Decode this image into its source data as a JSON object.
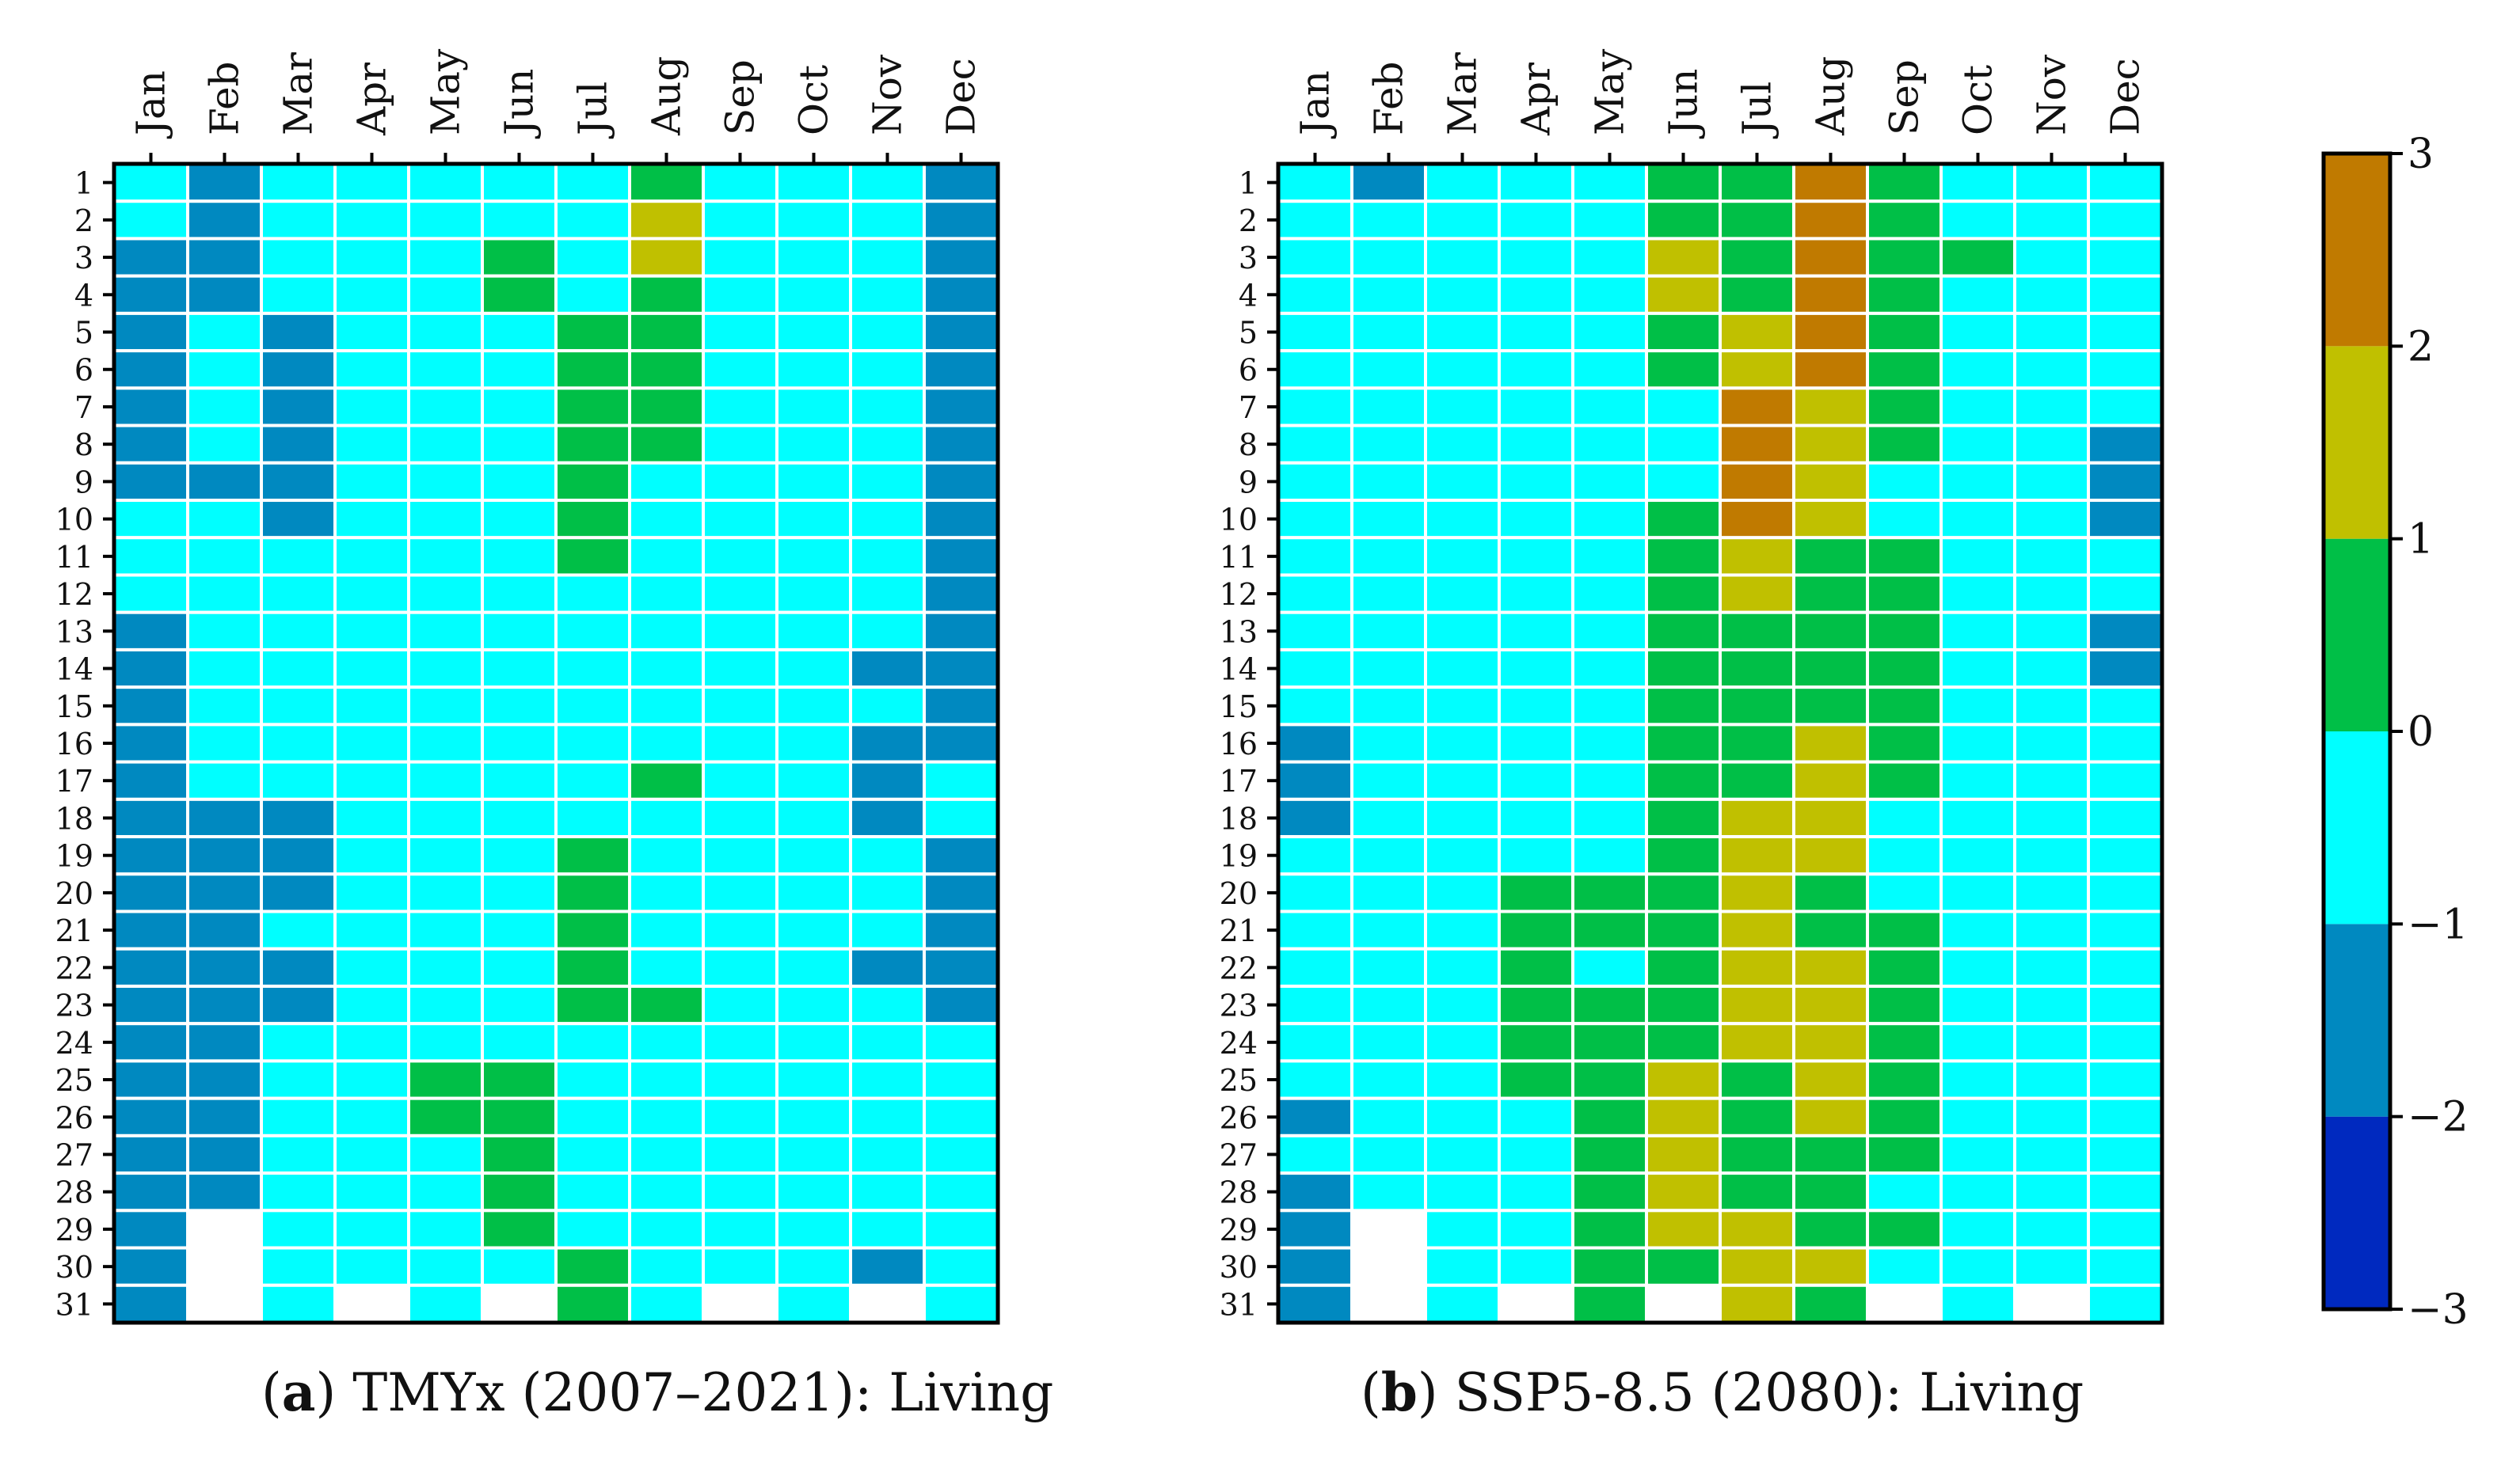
{
  "colors": {
    "background": "#ffffff",
    "grid_line": "#ffffff",
    "frame": "#000000",
    "levels": {
      "-3": "#0029bf",
      "-2": "#0089c0",
      "-1": "#00ffff",
      "0": "#00bf47",
      "1": "#c0c000",
      "2": "#c07a00"
    }
  },
  "chart_data": [
    {
      "type": "heatmap",
      "caption_label": "a",
      "caption_text": " TMYx (2007–2021): Living",
      "months": [
        "Jan",
        "Feb",
        "Mar",
        "Apr",
        "May",
        "Jun",
        "Jul",
        "Aug",
        "Sep",
        "Oct",
        "Nov",
        "Dec"
      ],
      "days": [
        "1",
        "2",
        "3",
        "4",
        "5",
        "6",
        "7",
        "8",
        "9",
        "10",
        "11",
        "12",
        "13",
        "14",
        "15",
        "16",
        "17",
        "18",
        "19",
        "20",
        "21",
        "22",
        "23",
        "24",
        "25",
        "26",
        "27",
        "28",
        "29",
        "30",
        "31"
      ],
      "value_note": "rows = days 1..31, columns = Jan..Dec, value = color level index (-3..2), null = no day",
      "values": [
        [
          -1,
          -2,
          -1,
          -1,
          -1,
          -1,
          -1,
          0,
          -1,
          -1,
          -1,
          -2
        ],
        [
          -1,
          -2,
          -1,
          -1,
          -1,
          -1,
          -1,
          1,
          -1,
          -1,
          -1,
          -2
        ],
        [
          -2,
          -2,
          -1,
          -1,
          -1,
          0,
          -1,
          1,
          -1,
          -1,
          -1,
          -2
        ],
        [
          -2,
          -2,
          -1,
          -1,
          -1,
          0,
          -1,
          0,
          -1,
          -1,
          -1,
          -2
        ],
        [
          -2,
          -1,
          -2,
          -1,
          -1,
          -1,
          0,
          0,
          -1,
          -1,
          -1,
          -2
        ],
        [
          -2,
          -1,
          -2,
          -1,
          -1,
          -1,
          0,
          0,
          -1,
          -1,
          -1,
          -2
        ],
        [
          -2,
          -1,
          -2,
          -1,
          -1,
          -1,
          0,
          0,
          -1,
          -1,
          -1,
          -2
        ],
        [
          -2,
          -1,
          -2,
          -1,
          -1,
          -1,
          0,
          0,
          -1,
          -1,
          -1,
          -2
        ],
        [
          -2,
          -2,
          -2,
          -1,
          -1,
          -1,
          0,
          -1,
          -1,
          -1,
          -1,
          -2
        ],
        [
          -1,
          -1,
          -2,
          -1,
          -1,
          -1,
          0,
          -1,
          -1,
          -1,
          -1,
          -2
        ],
        [
          -1,
          -1,
          -1,
          -1,
          -1,
          -1,
          0,
          -1,
          -1,
          -1,
          -1,
          -2
        ],
        [
          -1,
          -1,
          -1,
          -1,
          -1,
          -1,
          -1,
          -1,
          -1,
          -1,
          -1,
          -2
        ],
        [
          -2,
          -1,
          -1,
          -1,
          -1,
          -1,
          -1,
          -1,
          -1,
          -1,
          -1,
          -2
        ],
        [
          -2,
          -1,
          -1,
          -1,
          -1,
          -1,
          -1,
          -1,
          -1,
          -1,
          -2,
          -2
        ],
        [
          -2,
          -1,
          -1,
          -1,
          -1,
          -1,
          -1,
          -1,
          -1,
          -1,
          -1,
          -2
        ],
        [
          -2,
          -1,
          -1,
          -1,
          -1,
          -1,
          -1,
          -1,
          -1,
          -1,
          -2,
          -2
        ],
        [
          -2,
          -1,
          -1,
          -1,
          -1,
          -1,
          -1,
          0,
          -1,
          -1,
          -2,
          -1
        ],
        [
          -2,
          -2,
          -2,
          -1,
          -1,
          -1,
          -1,
          -1,
          -1,
          -1,
          -2,
          -1
        ],
        [
          -2,
          -2,
          -2,
          -1,
          -1,
          -1,
          0,
          -1,
          -1,
          -1,
          -1,
          -2
        ],
        [
          -2,
          -2,
          -2,
          -1,
          -1,
          -1,
          0,
          -1,
          -1,
          -1,
          -1,
          -2
        ],
        [
          -2,
          -2,
          -1,
          -1,
          -1,
          -1,
          0,
          -1,
          -1,
          -1,
          -1,
          -2
        ],
        [
          -2,
          -2,
          -2,
          -1,
          -1,
          -1,
          0,
          -1,
          -1,
          -1,
          -2,
          -2
        ],
        [
          -2,
          -2,
          -2,
          -1,
          -1,
          -1,
          0,
          0,
          -1,
          -1,
          -1,
          -2
        ],
        [
          -2,
          -2,
          -1,
          -1,
          -1,
          -1,
          -1,
          -1,
          -1,
          -1,
          -1,
          -1
        ],
        [
          -2,
          -2,
          -1,
          -1,
          0,
          0,
          -1,
          -1,
          -1,
          -1,
          -1,
          -1
        ],
        [
          -2,
          -2,
          -1,
          -1,
          0,
          0,
          -1,
          -1,
          -1,
          -1,
          -1,
          -1
        ],
        [
          -2,
          -2,
          -1,
          -1,
          -1,
          0,
          -1,
          -1,
          -1,
          -1,
          -1,
          -1
        ],
        [
          -2,
          -2,
          -1,
          -1,
          -1,
          0,
          -1,
          -1,
          -1,
          -1,
          -1,
          -1
        ],
        [
          -2,
          null,
          -1,
          -1,
          -1,
          0,
          -1,
          -1,
          -1,
          -1,
          -1,
          -1
        ],
        [
          -2,
          null,
          -1,
          -1,
          -1,
          -1,
          0,
          -1,
          -1,
          -1,
          -2,
          -1
        ],
        [
          -2,
          null,
          -1,
          null,
          -1,
          null,
          0,
          -1,
          null,
          -1,
          null,
          -1
        ]
      ]
    },
    {
      "type": "heatmap",
      "caption_label": "b",
      "caption_text": " SSP5-8.5 (2080): Living",
      "months": [
        "Jan",
        "Feb",
        "Mar",
        "Apr",
        "May",
        "Jun",
        "Jul",
        "Aug",
        "Sep",
        "Oct",
        "Nov",
        "Dec"
      ],
      "days": [
        "1",
        "2",
        "3",
        "4",
        "5",
        "6",
        "7",
        "8",
        "9",
        "10",
        "11",
        "12",
        "13",
        "14",
        "15",
        "16",
        "17",
        "18",
        "19",
        "20",
        "21",
        "22",
        "23",
        "24",
        "25",
        "26",
        "27",
        "28",
        "29",
        "30",
        "31"
      ],
      "value_note": "rows = days 1..31, columns = Jan..Dec, value = color level index (-3..2), null = no day",
      "values": [
        [
          -1,
          -2,
          -1,
          -1,
          -1,
          0,
          0,
          2,
          0,
          -1,
          -1,
          -1
        ],
        [
          -1,
          -1,
          -1,
          -1,
          -1,
          0,
          0,
          2,
          0,
          -1,
          -1,
          -1
        ],
        [
          -1,
          -1,
          -1,
          -1,
          -1,
          1,
          0,
          2,
          0,
          0,
          -1,
          -1
        ],
        [
          -1,
          -1,
          -1,
          -1,
          -1,
          1,
          0,
          2,
          0,
          -1,
          -1,
          -1
        ],
        [
          -1,
          -1,
          -1,
          -1,
          -1,
          0,
          1,
          2,
          0,
          -1,
          -1,
          -1
        ],
        [
          -1,
          -1,
          -1,
          -1,
          -1,
          0,
          1,
          2,
          0,
          -1,
          -1,
          -1
        ],
        [
          -1,
          -1,
          -1,
          -1,
          -1,
          -1,
          2,
          1,
          0,
          -1,
          -1,
          -1
        ],
        [
          -1,
          -1,
          -1,
          -1,
          -1,
          -1,
          2,
          1,
          0,
          -1,
          -1,
          -2
        ],
        [
          -1,
          -1,
          -1,
          -1,
          -1,
          -1,
          2,
          1,
          -1,
          -1,
          -1,
          -2
        ],
        [
          -1,
          -1,
          -1,
          -1,
          -1,
          0,
          2,
          1,
          -1,
          -1,
          -1,
          -2
        ],
        [
          -1,
          -1,
          -1,
          -1,
          -1,
          0,
          1,
          0,
          0,
          -1,
          -1,
          -1
        ],
        [
          -1,
          -1,
          -1,
          -1,
          -1,
          0,
          1,
          0,
          0,
          -1,
          -1,
          -1
        ],
        [
          -1,
          -1,
          -1,
          -1,
          -1,
          0,
          0,
          0,
          0,
          -1,
          -1,
          -2
        ],
        [
          -1,
          -1,
          -1,
          -1,
          -1,
          0,
          0,
          0,
          0,
          -1,
          -1,
          -2
        ],
        [
          -1,
          -1,
          -1,
          -1,
          -1,
          0,
          0,
          0,
          0,
          -1,
          -1,
          -1
        ],
        [
          -2,
          -1,
          -1,
          -1,
          -1,
          0,
          0,
          1,
          0,
          -1,
          -1,
          -1
        ],
        [
          -2,
          -1,
          -1,
          -1,
          -1,
          0,
          0,
          1,
          0,
          -1,
          -1,
          -1
        ],
        [
          -2,
          -1,
          -1,
          -1,
          -1,
          0,
          1,
          1,
          -1,
          -1,
          -1,
          -1
        ],
        [
          -1,
          -1,
          -1,
          -1,
          -1,
          0,
          1,
          1,
          -1,
          -1,
          -1,
          -1
        ],
        [
          -1,
          -1,
          -1,
          0,
          0,
          0,
          1,
          0,
          -1,
          -1,
          -1,
          -1
        ],
        [
          -1,
          -1,
          -1,
          0,
          0,
          0,
          1,
          0,
          0,
          -1,
          -1,
          -1
        ],
        [
          -1,
          -1,
          -1,
          0,
          -1,
          0,
          1,
          1,
          0,
          -1,
          -1,
          -1
        ],
        [
          -1,
          -1,
          -1,
          0,
          0,
          0,
          1,
          1,
          0,
          -1,
          -1,
          -1
        ],
        [
          -1,
          -1,
          -1,
          0,
          0,
          0,
          1,
          1,
          0,
          -1,
          -1,
          -1
        ],
        [
          -1,
          -1,
          -1,
          0,
          0,
          1,
          0,
          1,
          0,
          -1,
          -1,
          -1
        ],
        [
          -2,
          -1,
          -1,
          -1,
          0,
          1,
          0,
          1,
          0,
          -1,
          -1,
          -1
        ],
        [
          -1,
          -1,
          -1,
          -1,
          0,
          1,
          0,
          0,
          0,
          -1,
          -1,
          -1
        ],
        [
          -2,
          -1,
          -1,
          -1,
          0,
          1,
          0,
          0,
          -1,
          -1,
          -1,
          -1
        ],
        [
          -2,
          null,
          -1,
          -1,
          0,
          1,
          1,
          0,
          0,
          -1,
          -1,
          -1
        ],
        [
          -2,
          null,
          -1,
          -1,
          0,
          0,
          1,
          1,
          -1,
          -1,
          -1,
          -1
        ],
        [
          -2,
          null,
          -1,
          null,
          0,
          null,
          1,
          0,
          null,
          -1,
          null,
          -1
        ]
      ]
    }
  ],
  "colorbar": {
    "ticks": [
      "3",
      "2",
      "1",
      "0",
      "−1",
      "−2",
      "−3"
    ],
    "range": [
      -3,
      3
    ]
  }
}
